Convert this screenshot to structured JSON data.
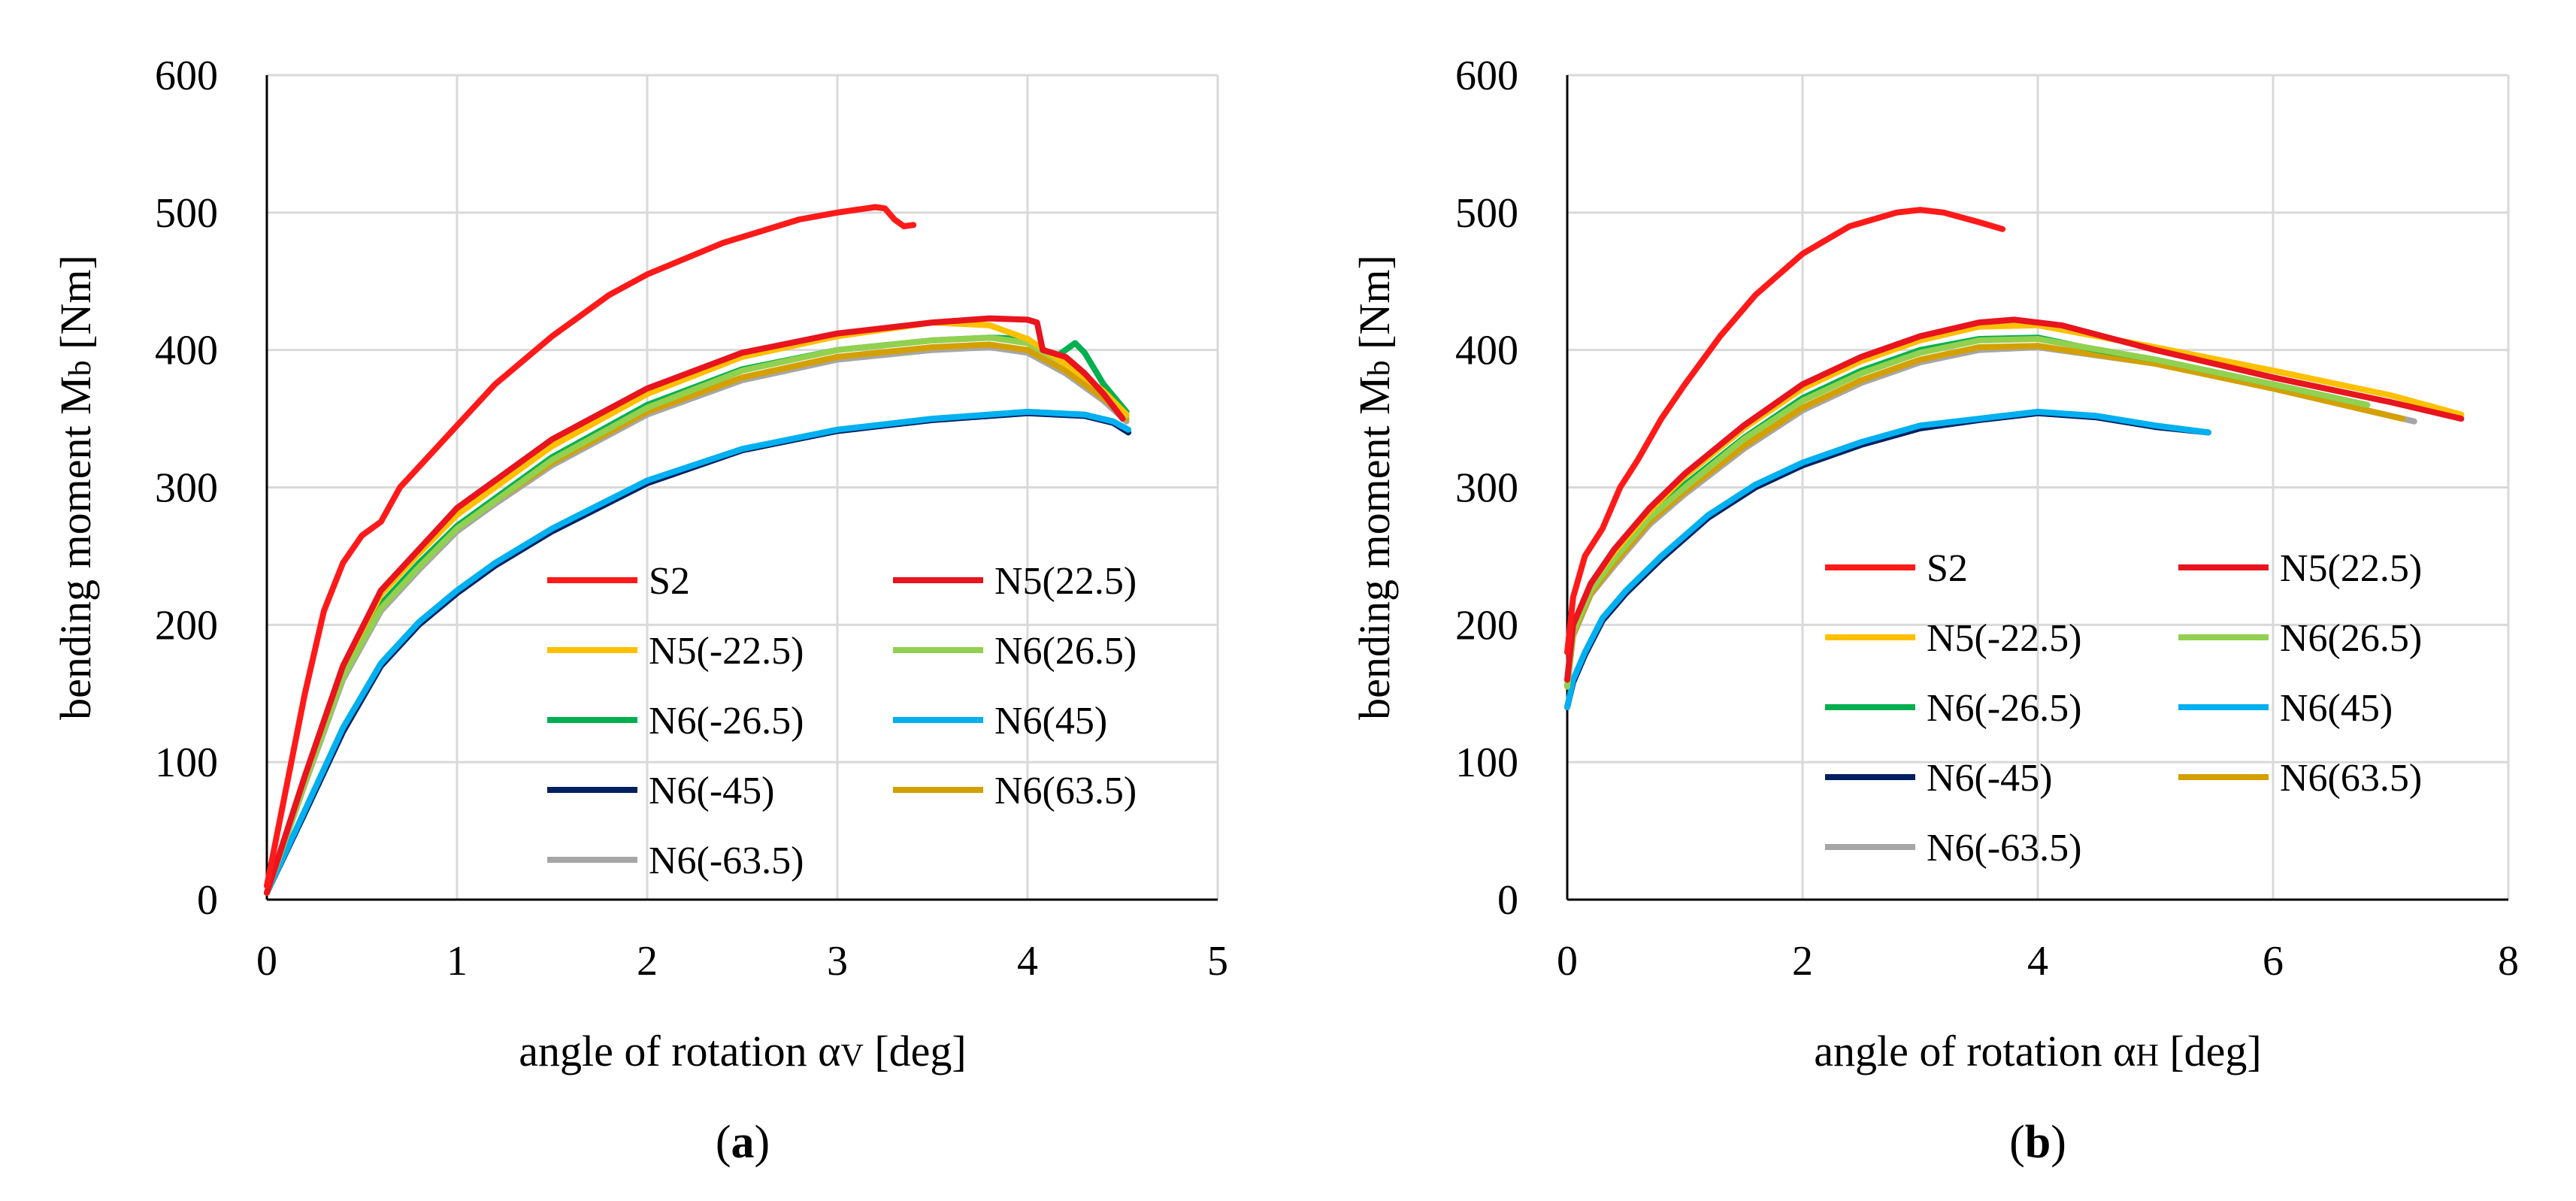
{
  "colors": {
    "S2": "#ff1a1a",
    "N5(22.5)": "#e8141e",
    "N5(-22.5)": "#ffc000",
    "N6(26.5)": "#92d050",
    "N6(-26.5)": "#00b050",
    "N6(45)": "#00b0f0",
    "N6(-45)": "#002060",
    "N6(63.5)": "#d4a000",
    "N6(-63.5)": "#a6a6a6"
  },
  "chart_data": [
    {
      "type": "line",
      "panel_label": "a",
      "xlabel_pre": "angle of rotation ",
      "xlabel_greek": "α",
      "xlabel_sub": "V",
      "xlabel_post": " [deg]",
      "ylabel_pre": "bending moment M",
      "ylabel_sub": "b",
      "ylabel_post": " [Nm]",
      "xlim": [
        0,
        5
      ],
      "ylim": [
        0,
        600
      ],
      "xticks": [
        0,
        1,
        2,
        3,
        4,
        5
      ],
      "yticks": [
        0,
        100,
        200,
        300,
        400,
        500,
        600
      ],
      "grid": true,
      "legend_placement": "lower-right",
      "series": [
        {
          "name": "S2",
          "x": [
            0,
            0.1,
            0.2,
            0.3,
            0.4,
            0.5,
            0.6,
            0.7,
            0.8,
            1.0,
            1.2,
            1.5,
            1.8,
            2.0,
            2.4,
            2.8,
            3.0,
            3.2,
            3.25,
            3.3,
            3.35,
            3.4
          ],
          "y": [
            10,
            80,
            150,
            210,
            245,
            265,
            275,
            300,
            315,
            345,
            375,
            410,
            440,
            455,
            478,
            495,
            500,
            504,
            503,
            495,
            490,
            491
          ]
        },
        {
          "name": "N5(22.5)",
          "x": [
            0,
            0.2,
            0.4,
            0.6,
            0.8,
            1.0,
            1.2,
            1.5,
            2.0,
            2.5,
            3.0,
            3.5,
            3.8,
            4.0,
            4.05,
            4.08,
            4.2,
            4.3,
            4.4,
            4.5
          ],
          "y": [
            5,
            90,
            170,
            225,
            255,
            285,
            305,
            335,
            372,
            398,
            412,
            420,
            423,
            422,
            420,
            400,
            395,
            383,
            368,
            350
          ]
        },
        {
          "name": "N5(-22.5)",
          "x": [
            0,
            0.2,
            0.4,
            0.6,
            0.8,
            1.0,
            1.2,
            1.5,
            2.0,
            2.5,
            3.0,
            3.5,
            3.8,
            4.0,
            4.2,
            4.4,
            4.52
          ],
          "y": [
            5,
            90,
            170,
            222,
            252,
            280,
            300,
            330,
            368,
            395,
            410,
            420,
            418,
            408,
            390,
            370,
            353
          ]
        },
        {
          "name": "N6(26.5)",
          "x": [
            0,
            0.2,
            0.4,
            0.6,
            0.8,
            1.0,
            1.2,
            1.5,
            2.0,
            2.5,
            3.0,
            3.5,
            3.8,
            4.0,
            4.2,
            4.4,
            4.52
          ],
          "y": [
            5,
            85,
            162,
            212,
            242,
            270,
            290,
            320,
            358,
            385,
            400,
            407,
            409,
            405,
            390,
            370,
            352
          ]
        },
        {
          "name": "N6(-26.5)",
          "x": [
            0,
            0.2,
            0.4,
            0.6,
            0.8,
            1.0,
            1.2,
            1.5,
            2.0,
            2.5,
            3.0,
            3.5,
            3.8,
            4.0,
            4.1,
            4.15,
            4.25,
            4.3,
            4.4,
            4.52
          ],
          "y": [
            5,
            87,
            165,
            215,
            245,
            272,
            292,
            322,
            360,
            386,
            400,
            407,
            409,
            408,
            398,
            395,
            405,
            398,
            375,
            355
          ]
        },
        {
          "name": "N6(45)",
          "x": [
            0,
            0.2,
            0.4,
            0.6,
            0.8,
            1.0,
            1.2,
            1.5,
            2.0,
            2.5,
            3.0,
            3.5,
            4.0,
            4.3,
            4.45,
            4.53
          ],
          "y": [
            5,
            65,
            125,
            172,
            202,
            225,
            245,
            270,
            305,
            328,
            342,
            350,
            355,
            353,
            348,
            342
          ]
        },
        {
          "name": "N6(-45)",
          "x": [
            0,
            0.2,
            0.4,
            0.6,
            0.8,
            1.0,
            1.2,
            1.5,
            2.0,
            2.5,
            3.0,
            3.5,
            4.0,
            4.3,
            4.45,
            4.53
          ],
          "y": [
            5,
            63,
            122,
            170,
            200,
            223,
            243,
            268,
            303,
            327,
            341,
            349,
            354,
            352,
            347,
            340
          ]
        },
        {
          "name": "N6(63.5)",
          "x": [
            0,
            0.2,
            0.4,
            0.6,
            0.8,
            1.0,
            1.2,
            1.5,
            2.0,
            2.5,
            3.0,
            3.5,
            3.8,
            4.0,
            4.2,
            4.4,
            4.52
          ],
          "y": [
            5,
            86,
            164,
            213,
            243,
            270,
            290,
            318,
            355,
            380,
            395,
            402,
            404,
            400,
            385,
            365,
            350
          ]
        },
        {
          "name": "N6(-63.5)",
          "x": [
            0,
            0.2,
            0.4,
            0.6,
            0.8,
            1.0,
            1.2,
            1.5,
            2.0,
            2.5,
            3.0,
            3.5,
            3.8,
            4.0,
            4.2,
            4.4,
            4.52
          ],
          "y": [
            5,
            84,
            160,
            210,
            240,
            268,
            288,
            316,
            353,
            378,
            393,
            400,
            402,
            398,
            383,
            363,
            348
          ]
        }
      ]
    },
    {
      "type": "line",
      "panel_label": "b",
      "xlabel_pre": "angle of rotation ",
      "xlabel_greek": "α",
      "xlabel_sub": "H",
      "xlabel_post": " [deg]",
      "ylabel_pre": "bending moment M",
      "ylabel_sub": "b",
      "ylabel_post": " [Nm]",
      "xlim": [
        0,
        8
      ],
      "ylim": [
        0,
        600
      ],
      "xticks": [
        0,
        2,
        4,
        6,
        8
      ],
      "yticks": [
        0,
        100,
        200,
        300,
        400,
        500,
        600
      ],
      "grid": true,
      "legend_placement": "lower-right",
      "series": [
        {
          "name": "S2",
          "x": [
            0,
            0.05,
            0.15,
            0.3,
            0.45,
            0.6,
            0.8,
            1.0,
            1.3,
            1.6,
            2.0,
            2.4,
            2.8,
            3.0,
            3.2,
            3.5,
            3.7
          ],
          "y": [
            180,
            220,
            250,
            270,
            300,
            320,
            350,
            375,
            410,
            440,
            470,
            490,
            500,
            502,
            500,
            493,
            488
          ]
        },
        {
          "name": "N5(22.5)",
          "x": [
            0,
            0.05,
            0.2,
            0.4,
            0.7,
            1.0,
            1.5,
            2.0,
            2.5,
            3.0,
            3.5,
            3.8,
            4.2,
            5.0,
            6.0,
            7.0,
            7.6
          ],
          "y": [
            160,
            200,
            230,
            255,
            285,
            310,
            345,
            375,
            395,
            410,
            420,
            422,
            418,
            400,
            380,
            362,
            350
          ]
        },
        {
          "name": "N5(-22.5)",
          "x": [
            0,
            0.05,
            0.2,
            0.4,
            0.7,
            1.0,
            1.5,
            2.0,
            2.5,
            3.0,
            3.5,
            4.0,
            5.0,
            6.0,
            7.0,
            7.6
          ],
          "y": [
            160,
            200,
            230,
            253,
            283,
            308,
            343,
            372,
            392,
            407,
            417,
            418,
            402,
            385,
            367,
            353
          ]
        },
        {
          "name": "N6(26.5)",
          "x": [
            0,
            0.05,
            0.2,
            0.4,
            0.7,
            1.0,
            1.5,
            2.0,
            2.5,
            3.0,
            3.5,
            4.0,
            5.0,
            6.0,
            6.8
          ],
          "y": [
            155,
            195,
            225,
            248,
            278,
            300,
            335,
            363,
            383,
            398,
            407,
            408,
            393,
            375,
            360
          ]
        },
        {
          "name": "N6(-26.5)",
          "x": [
            0,
            0.05,
            0.2,
            0.4,
            0.7,
            1.0,
            1.5,
            2.0,
            2.5,
            3.0,
            3.5,
            4.0,
            4.5,
            5.0,
            6.0,
            6.8
          ],
          "y": [
            155,
            196,
            227,
            250,
            280,
            302,
            336,
            365,
            385,
            400,
            408,
            409,
            400,
            393,
            375,
            360
          ]
        },
        {
          "name": "N6(45)",
          "x": [
            0,
            0.05,
            0.15,
            0.3,
            0.5,
            0.8,
            1.2,
            1.6,
            2.0,
            2.5,
            3.0,
            3.5,
            4.0,
            4.5,
            5.0,
            5.45
          ],
          "y": [
            140,
            160,
            180,
            205,
            225,
            250,
            280,
            302,
            318,
            333,
            345,
            350,
            355,
            352,
            345,
            340
          ]
        },
        {
          "name": "N6(-45)",
          "x": [
            0,
            0.05,
            0.15,
            0.3,
            0.5,
            0.8,
            1.2,
            1.6,
            2.0,
            2.5,
            3.0,
            3.5,
            4.0,
            4.5,
            5.0,
            5.45
          ],
          "y": [
            140,
            158,
            178,
            203,
            223,
            248,
            278,
            300,
            316,
            331,
            343,
            349,
            354,
            351,
            344,
            340
          ]
        },
        {
          "name": "N6(63.5)",
          "x": [
            0,
            0.05,
            0.2,
            0.4,
            0.7,
            1.0,
            1.5,
            2.0,
            2.5,
            3.0,
            3.5,
            4.0,
            5.0,
            6.0,
            7.1
          ],
          "y": [
            155,
            193,
            223,
            245,
            275,
            297,
            330,
            358,
            378,
            393,
            402,
            403,
            390,
            372,
            350
          ]
        },
        {
          "name": "N6(-63.5)",
          "x": [
            0,
            0.05,
            0.2,
            0.4,
            0.7,
            1.0,
            1.5,
            2.0,
            2.5,
            3.0,
            3.5,
            4.0,
            5.0,
            6.0,
            7.2
          ],
          "y": [
            155,
            192,
            222,
            243,
            273,
            295,
            328,
            356,
            376,
            391,
            400,
            402,
            390,
            372,
            348
          ]
        }
      ]
    }
  ]
}
